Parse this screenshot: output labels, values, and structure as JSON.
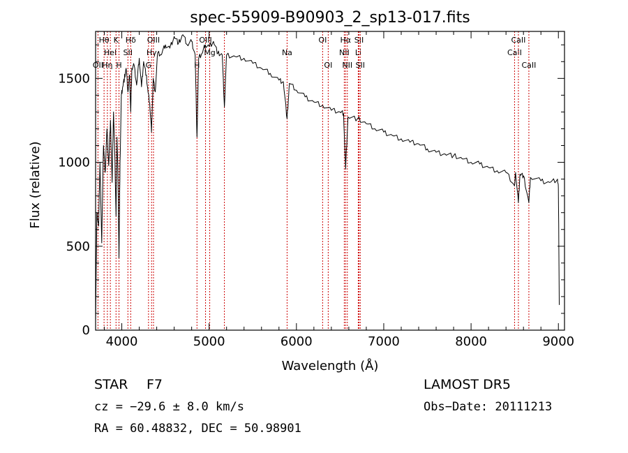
{
  "chart_data": {
    "type": "line",
    "title": "spec-55909-B90903_2_sp13-017.fits",
    "xlabel": "Wavelength (Å)",
    "ylabel": "Flux (relative)",
    "xlim": [
      3700,
      9070
    ],
    "ylim": [
      0,
      1780
    ],
    "xticks": [
      4000,
      5000,
      6000,
      7000,
      8000,
      9000
    ],
    "yticks": [
      0,
      500,
      1000,
      1500
    ],
    "grid": false,
    "series": [
      {
        "name": "",
        "points": [
          [
            3700,
            60
          ],
          [
            3715,
            700
          ],
          [
            3735,
            620
          ],
          [
            3750,
            1000
          ],
          [
            3770,
            520
          ],
          [
            3790,
            1100
          ],
          [
            3810,
            940
          ],
          [
            3830,
            1200
          ],
          [
            3850,
            980
          ],
          [
            3870,
            1250
          ],
          [
            3889,
            880
          ],
          [
            3905,
            1300
          ],
          [
            3920,
            1050
          ],
          [
            3934,
            680
          ],
          [
            3945,
            1150
          ],
          [
            3955,
            950
          ],
          [
            3968,
            430
          ],
          [
            3980,
            1000
          ],
          [
            3995,
            1400
          ],
          [
            4010,
            1450
          ],
          [
            4030,
            1500
          ],
          [
            4050,
            1560
          ],
          [
            4070,
            1420
          ],
          [
            4090,
            1520
          ],
          [
            4102,
            1300
          ],
          [
            4115,
            1560
          ],
          [
            4140,
            1580
          ],
          [
            4170,
            1460
          ],
          [
            4200,
            1620
          ],
          [
            4226,
            1450
          ],
          [
            4250,
            1600
          ],
          [
            4280,
            1520
          ],
          [
            4300,
            1420
          ],
          [
            4320,
            1350
          ],
          [
            4340,
            1180
          ],
          [
            4360,
            1500
          ],
          [
            4383,
            1420
          ],
          [
            4410,
            1650
          ],
          [
            4450,
            1640
          ],
          [
            4500,
            1700
          ],
          [
            4550,
            1680
          ],
          [
            4600,
            1750
          ],
          [
            4650,
            1710
          ],
          [
            4700,
            1760
          ],
          [
            4750,
            1700
          ],
          [
            4800,
            1720
          ],
          [
            4840,
            1640
          ],
          [
            4861,
            1150
          ],
          [
            4880,
            1620
          ],
          [
            4920,
            1650
          ],
          [
            4957,
            1700
          ],
          [
            5000,
            1690
          ],
          [
            5050,
            1720
          ],
          [
            5100,
            1650
          ],
          [
            5150,
            1640
          ],
          [
            5175,
            1330
          ],
          [
            5200,
            1640
          ],
          [
            5300,
            1630
          ],
          [
            5400,
            1620
          ],
          [
            5500,
            1590
          ],
          [
            5600,
            1560
          ],
          [
            5700,
            1530
          ],
          [
            5800,
            1490
          ],
          [
            5850,
            1480
          ],
          [
            5893,
            1260
          ],
          [
            5920,
            1470
          ],
          [
            6000,
            1430
          ],
          [
            6100,
            1390
          ],
          [
            6200,
            1360
          ],
          [
            6300,
            1340
          ],
          [
            6400,
            1310
          ],
          [
            6500,
            1300
          ],
          [
            6540,
            1290
          ],
          [
            6563,
            960
          ],
          [
            6590,
            1270
          ],
          [
            6700,
            1260
          ],
          [
            6800,
            1230
          ],
          [
            6900,
            1200
          ],
          [
            7000,
            1180
          ],
          [
            7100,
            1160
          ],
          [
            7200,
            1140
          ],
          [
            7300,
            1120
          ],
          [
            7400,
            1110
          ],
          [
            7500,
            1080
          ],
          [
            7600,
            1060
          ],
          [
            7700,
            1050
          ],
          [
            7800,
            1040
          ],
          [
            7900,
            1020
          ],
          [
            8000,
            1000
          ],
          [
            8100,
            990
          ],
          [
            8200,
            970
          ],
          [
            8300,
            950
          ],
          [
            8400,
            940
          ],
          [
            8498,
            860
          ],
          [
            8510,
            940
          ],
          [
            8542,
            760
          ],
          [
            8560,
            930
          ],
          [
            8600,
            920
          ],
          [
            8662,
            760
          ],
          [
            8680,
            910
          ],
          [
            8800,
            890
          ],
          [
            8900,
            880
          ],
          [
            8990,
            900
          ],
          [
            9000,
            850
          ],
          [
            9010,
            150
          ]
        ]
      }
    ],
    "line_markers": [
      {
        "wl": 3727,
        "labels": [
          "OII"
        ],
        "row": 2
      },
      {
        "wl": 3797,
        "labels": [
          "Hθ"
        ],
        "row": 0
      },
      {
        "wl": 3835,
        "labels": [
          "Hη"
        ],
        "row": 2
      },
      {
        "wl": 3869,
        "labels": [
          "HeI"
        ],
        "row": 1
      },
      {
        "wl": 3934,
        "labels": [
          "K"
        ],
        "row": 0
      },
      {
        "wl": 3968,
        "labels": [
          "H"
        ],
        "row": 2
      },
      {
        "wl": 4070,
        "labels": [
          "SII"
        ],
        "row": 1
      },
      {
        "wl": 4102,
        "labels": [
          "Hδ"
        ],
        "row": 0
      },
      {
        "wl": 4306,
        "labels": [
          "G"
        ],
        "row": 2
      },
      {
        "wl": 4341,
        "labels": [
          "Hγ"
        ],
        "row": 1
      },
      {
        "wl": 4363,
        "labels": [
          "OIII"
        ],
        "row": 0
      },
      {
        "wl": 4861,
        "labels": [
          "H"
        ],
        "row": 2
      },
      {
        "wl": 4959,
        "labels": [
          "OIII"
        ],
        "row": 0
      },
      {
        "wl": 5007,
        "labels": [
          "Mg"
        ],
        "row": 1
      },
      {
        "wl": 5175,
        "labels": [],
        "row": 0
      },
      {
        "wl": 5893,
        "labels": [
          "Na"
        ],
        "row": 1
      },
      {
        "wl": 6300,
        "labels": [
          "OI"
        ],
        "row": 0
      },
      {
        "wl": 6364,
        "labels": [
          "OI"
        ],
        "row": 2
      },
      {
        "wl": 6548,
        "labels": [
          "NII"
        ],
        "row": 1
      },
      {
        "wl": 6563,
        "labels": [
          "Hα"
        ],
        "row": 0
      },
      {
        "wl": 6583,
        "labels": [
          "NII"
        ],
        "row": 2
      },
      {
        "wl": 6708,
        "labels": [
          "Li"
        ],
        "row": 1
      },
      {
        "wl": 6717,
        "labels": [
          "SII"
        ],
        "row": 0
      },
      {
        "wl": 6731,
        "labels": [
          "SII"
        ],
        "row": 2
      },
      {
        "wl": 8498,
        "labels": [
          "CaII"
        ],
        "row": 1
      },
      {
        "wl": 8542,
        "labels": [
          "CaII"
        ],
        "row": 0
      },
      {
        "wl": 8662,
        "labels": [
          "CaII"
        ],
        "row": 2
      }
    ]
  },
  "info": {
    "class_label": "STAR",
    "subclass": "F7",
    "survey": "LAMOST  DR5",
    "velocity": "cz = −29.6 ± 8.0 km/s",
    "obs_date": "Obs−Date: 20111213",
    "coords": "RA =  60.48832, DEC =  50.98901"
  },
  "colors": {
    "spectrum": "#000000",
    "marker_lines": "#cc0000",
    "axes": "#000000"
  }
}
